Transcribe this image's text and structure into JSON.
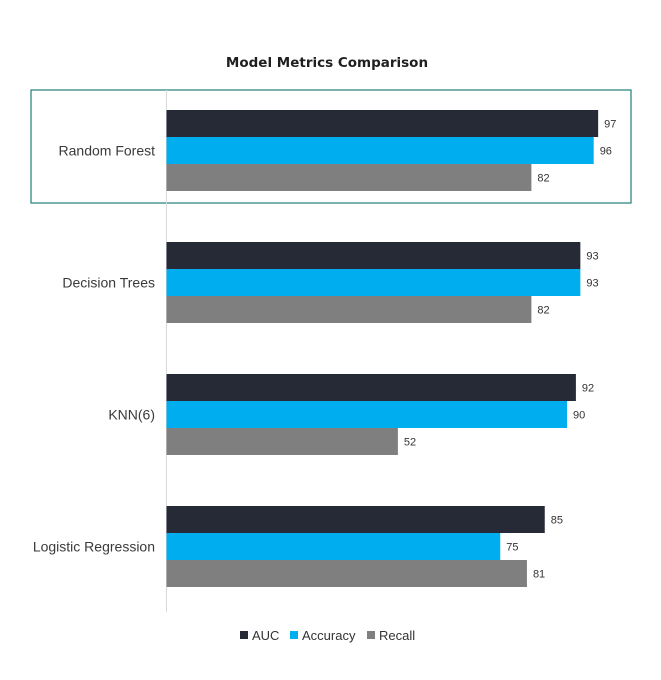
{
  "chart_data": {
    "type": "bar",
    "orientation": "horizontal",
    "title": "Model Metrics Comparison",
    "categories": [
      "Random Forest",
      "Decision Trees",
      "KNN(6)",
      "Logistic Regression"
    ],
    "series": [
      {
        "name": "AUC",
        "color": "#252a36",
        "values": [
          97,
          93,
          92,
          85
        ]
      },
      {
        "name": "Accuracy",
        "color": "#00aeef",
        "values": [
          96,
          93,
          90,
          75
        ]
      },
      {
        "name": "Recall",
        "color": "#7f7f7f",
        "values": [
          82,
          82,
          52,
          81
        ]
      }
    ],
    "xlim": [
      0,
      100
    ],
    "grid": false,
    "legend_position": "bottom",
    "highlighted_category": "Random Forest",
    "highlight_color": "#1f7f7a"
  }
}
